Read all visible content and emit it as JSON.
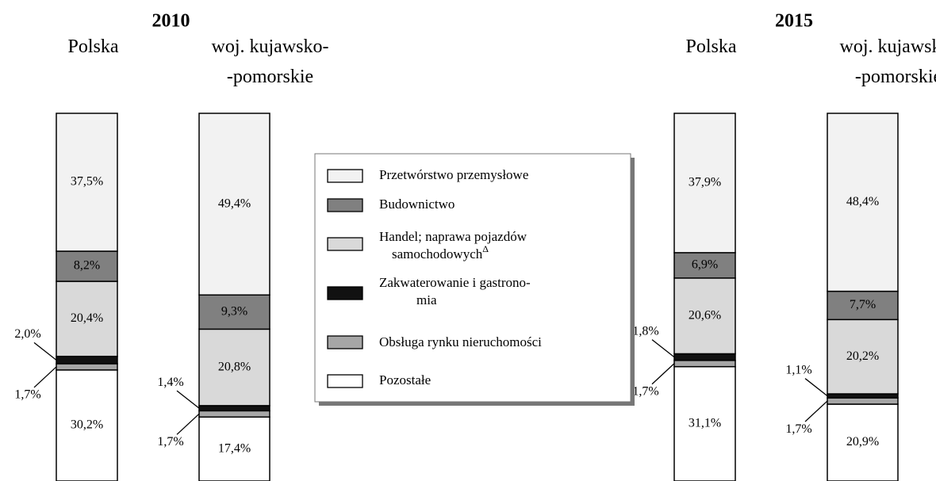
{
  "chart_data": {
    "type": "stacked_bar",
    "groups": [
      "2010",
      "2015"
    ],
    "categories": [
      "Polska",
      "woj. kujawsko-\n-pomorskie",
      "Polska",
      "woj. kujawsko-\n-pomorskie"
    ],
    "series": [
      {
        "name": "Przetwórstwo przemysłowe",
        "color": "#f2f2f2",
        "values": [
          37.5,
          49.4,
          37.9,
          48.4
        ],
        "value_labels": [
          "37,5%",
          "49,4%",
          "37,9%",
          "48,4%"
        ]
      },
      {
        "name": "Budownictwo",
        "color": "#808080",
        "values": [
          8.2,
          9.3,
          6.9,
          7.7
        ],
        "value_labels": [
          "8,2%",
          "9,3%",
          "6,9%",
          "7,7%"
        ]
      },
      {
        "name": "Handel; naprawa pojazdów\nsamochodowych",
        "note": "Δ",
        "color": "#d9d9d9",
        "values": [
          20.4,
          20.8,
          20.6,
          20.2
        ],
        "value_labels": [
          "20,4%",
          "20,8%",
          "20,6%",
          "20,2%"
        ]
      },
      {
        "name": "Zakwaterowanie i gastrono-\nmia",
        "color": "#111111",
        "values": [
          2.0,
          1.4,
          1.8,
          1.1
        ],
        "value_labels": [
          "2,0%",
          "1,4%",
          "1,8%",
          "1,1%"
        ]
      },
      {
        "name": "Obsługa rynku nieruchomości",
        "color": "#a6a6a6",
        "values": [
          1.7,
          1.7,
          1.7,
          1.7
        ],
        "value_labels": [
          "1,7%",
          "1,7%",
          "1,7%",
          "1,7%"
        ]
      },
      {
        "name": "Pozostałe",
        "color": "#ffffff",
        "values": [
          30.2,
          17.4,
          31.1,
          20.9
        ],
        "value_labels": [
          "30,2%",
          "17,4%",
          "31,1%",
          "20,9%"
        ]
      }
    ]
  }
}
